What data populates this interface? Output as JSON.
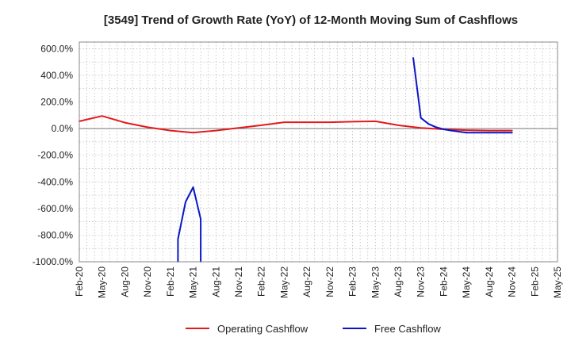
{
  "chart_data": {
    "type": "line",
    "title": "[3549]  Trend of Growth Rate (YoY) of 12-Month Moving Sum of Cashflows",
    "xlabel": "",
    "ylabel": "",
    "ylim": [
      -1000,
      650
    ],
    "grid": true,
    "legend_position": "bottom",
    "y_ticks": [
      600,
      400,
      200,
      0,
      -200,
      -400,
      -600,
      -800,
      -1000
    ],
    "y_tick_labels": [
      "600.0%",
      "400.0%",
      "200.0%",
      "0.0%",
      "-200.0%",
      "-400.0%",
      "-600.0%",
      "-800.0%",
      "-1000.0%"
    ],
    "x_ticks": [
      "Feb-20",
      "May-20",
      "Aug-20",
      "Nov-20",
      "Feb-21",
      "May-21",
      "Aug-21",
      "Nov-21",
      "Feb-22",
      "May-22",
      "Aug-22",
      "Nov-22",
      "Feb-23",
      "May-23",
      "Aug-23",
      "Nov-23",
      "Feb-24",
      "May-24",
      "Aug-24",
      "Nov-24",
      "Feb-25",
      "May-25"
    ],
    "series": [
      {
        "name": "Operating Cashflow",
        "color": "#e31a1c",
        "points": [
          [
            "Feb-20",
            55
          ],
          [
            "May-20",
            95
          ],
          [
            "Aug-20",
            45
          ],
          [
            "Nov-20",
            10
          ],
          [
            "Feb-21",
            -15
          ],
          [
            "May-21",
            -30
          ],
          [
            "Aug-21",
            -15
          ],
          [
            "Nov-21",
            5
          ],
          [
            "Feb-22",
            25
          ],
          [
            "May-22",
            48
          ],
          [
            "Aug-22",
            48
          ],
          [
            "Nov-22",
            48
          ],
          [
            "Feb-23",
            52
          ],
          [
            "May-23",
            55
          ],
          [
            "Aug-23",
            25
          ],
          [
            "Nov-23",
            5
          ],
          [
            "Feb-24",
            -5
          ],
          [
            "May-24",
            -12
          ],
          [
            "Aug-24",
            -15
          ],
          [
            "Nov-24",
            -15
          ]
        ]
      },
      {
        "name": "Free Cashflow",
        "color": "#0a16c8",
        "segments": [
          [
            [
              "Mar-21",
              -1000
            ],
            [
              "Mar-21",
              -830
            ],
            [
              "Apr-21",
              -550
            ],
            [
              "May-21",
              -440
            ],
            [
              "Jun-21",
              -680
            ],
            [
              "Jun-21",
              -1000
            ]
          ],
          [
            [
              "Oct-23",
              530
            ],
            [
              "Nov-23",
              80
            ],
            [
              "Dec-23",
              35
            ],
            [
              "Jan-24",
              10
            ],
            [
              "Feb-24",
              -5
            ],
            [
              "Mar-24",
              -15
            ],
            [
              "May-24",
              -30
            ],
            [
              "Aug-24",
              -30
            ],
            [
              "Nov-24",
              -30
            ]
          ]
        ]
      }
    ]
  }
}
